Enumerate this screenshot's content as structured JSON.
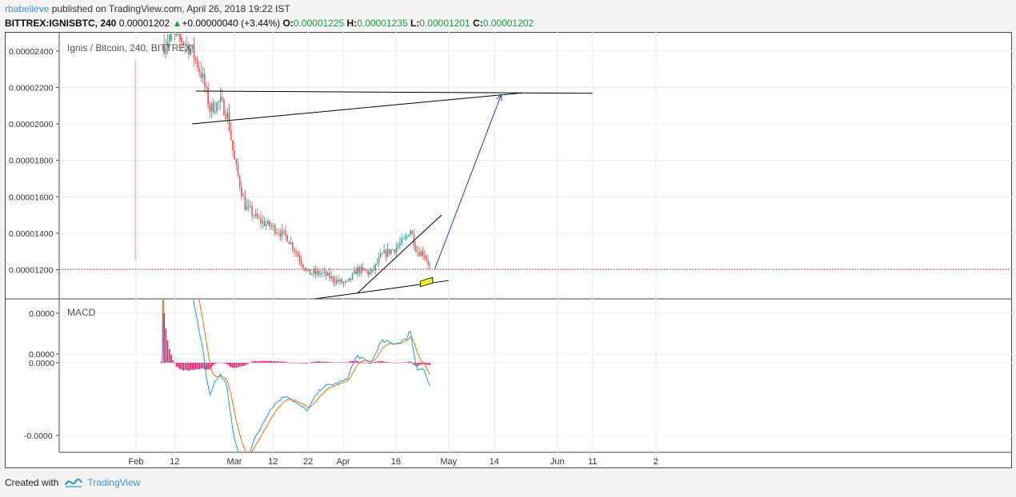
{
  "header": {
    "author": "rbabelieve",
    "published_text": " published on TradingView.com, April 26, 2018 19:22 IST",
    "symbol": "BITTREX:IGNISBTC, 240",
    "last": "0.00001202",
    "change_arrow": "▲",
    "change": "+0.00000040 (+3.44%)",
    "o_label": "O:",
    "o_value": "0.00001225",
    "h_label": "H:",
    "h_value": "0.00001235",
    "l_label": "L:",
    "l_value": "0.00001201",
    "c_label": "C:",
    "c_value": "0.00001202"
  },
  "footer": {
    "created_with": "Created with",
    "brand": "TradingView"
  },
  "colors": {
    "up": "#26a69a",
    "down": "#ef5350",
    "macd_hist": "#e5176d",
    "macd_line": "#2196f3",
    "signal_line": "#ff6d00",
    "projection": "#1a3fd8",
    "highlight": "#f7ef26",
    "last_price_line": "#c2185b"
  },
  "chart_data": {
    "type": "candlestick",
    "title": "Ignis / Bitcoin, 240, BITTREX",
    "x_ticks": [
      "Feb",
      "12",
      "Mar",
      "12",
      "22",
      "Apr",
      "16",
      "May",
      "14",
      "Jun",
      "11",
      "2"
    ],
    "y_ticks": [
      "0.00002400",
      "0.00002200",
      "0.00002000",
      "0.00001800",
      "0.00001600",
      "0.00001400",
      "0.00001200"
    ],
    "ylim": [
      1.04e-05,
      2.5e-05
    ],
    "last_price": 1.202e-05,
    "price_path": [
      [
        "2018-02-09",
        2.43e-05
      ],
      [
        "2018-02-11",
        2.5e-05
      ],
      [
        "2018-02-13",
        2.48e-05
      ],
      [
        "2018-02-17",
        2.4e-05
      ],
      [
        "2018-02-20",
        2.25e-05
      ],
      [
        "2018-02-22",
        2.08e-05
      ],
      [
        "2018-02-25",
        2.12e-05
      ],
      [
        "2018-02-27",
        2.05e-05
      ],
      [
        "2018-03-01",
        1.8e-05
      ],
      [
        "2018-03-04",
        1.55e-05
      ],
      [
        "2018-03-08",
        1.47e-05
      ],
      [
        "2018-03-12",
        1.43e-05
      ],
      [
        "2018-03-16",
        1.38e-05
      ],
      [
        "2018-03-19",
        1.28e-05
      ],
      [
        "2018-03-22",
        1.18e-05
      ],
      [
        "2018-03-26",
        1.18e-05
      ],
      [
        "2018-03-30",
        1.14e-05
      ],
      [
        "2018-04-02",
        1.12e-05
      ],
      [
        "2018-04-05",
        1.2e-05
      ],
      [
        "2018-04-09",
        1.18e-05
      ],
      [
        "2018-04-12",
        1.28e-05
      ],
      [
        "2018-04-16",
        1.32e-05
      ],
      [
        "2018-04-19",
        1.37e-05
      ],
      [
        "2018-04-20",
        1.43e-05
      ],
      [
        "2018-04-22",
        1.3e-05
      ],
      [
        "2018-04-24",
        1.29e-05
      ],
      [
        "2018-04-26",
        1.2e-05
      ]
    ],
    "trend_lines": [
      [
        [
          "2018-02-18",
          2.18e-05
        ],
        [
          "2018-05-22",
          2.17e-05
        ]
      ],
      [
        [
          "2018-02-17",
          2e-05
        ],
        [
          "2018-05-22",
          2.17e-05
        ]
      ],
      [
        [
          "2018-03-24",
          1.04e-05
        ],
        [
          "2018-05-01",
          1.14e-05
        ]
      ],
      [
        [
          "2018-04-05",
          1.07e-05
        ],
        [
          "2018-04-29",
          1.5e-05
        ]
      ]
    ],
    "projection": [
      [
        "2018-04-27",
        1.2e-05
      ],
      [
        "2018-05-16",
        2.16e-05
      ]
    ],
    "highlight_box": [
      [
        "2018-04-23",
        1.12e-05
      ],
      [
        "2018-04-26",
        1.14e-05
      ]
    ],
    "macd": {
      "label": "MACD",
      "y_ticks": [
        "0.0000",
        "0.0000",
        "0.0000",
        "-0.0000"
      ]
    }
  }
}
